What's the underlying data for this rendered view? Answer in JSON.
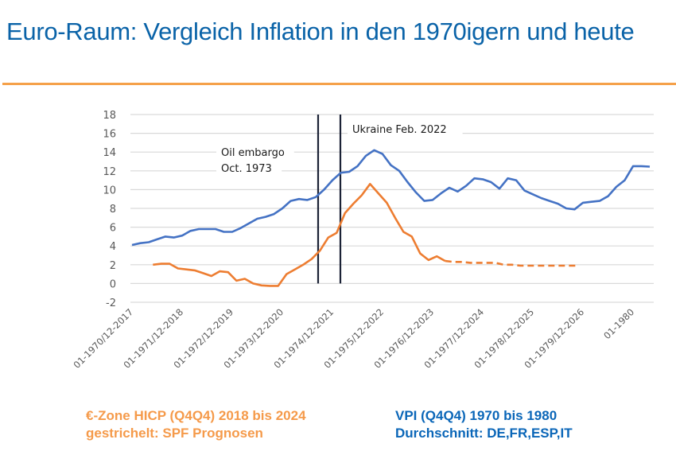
{
  "page": {
    "title": "Euro-Raum: Vergleich Inflation in den 1970igern und heute",
    "accent_color": "#f5a14a",
    "title_color": "#0a63a8"
  },
  "legend": {
    "left": {
      "line1": "€-Zone HICP (Q4Q4) 2018 bis 2024",
      "line2": "gestrichelt: SPF Prognosen",
      "color": "#f59a4a"
    },
    "right": {
      "line1": "VPI (Q4Q4) 1970 bis 1980",
      "line2": "Durchschnitt: DE,FR,ESP,IT",
      "color": "#0a66b8"
    }
  },
  "chart_data": {
    "type": "line",
    "title": "Euro-Raum: Vergleich Inflation in den 1970igern und heute",
    "xlabel": "",
    "ylabel": "",
    "ylim": [
      -2,
      18
    ],
    "yticks": [
      18,
      16,
      14,
      12,
      10,
      8,
      6,
      4,
      2,
      0,
      -2
    ],
    "grid": true,
    "x_unit": "month index (0 = 01-1970 / 01-2017), sampled every 2 months",
    "x_range": [
      0,
      132
    ],
    "xtick_positions": [
      0,
      12,
      24,
      36,
      48,
      60,
      72,
      84,
      96,
      108,
      120
    ],
    "xtick_labels": [
      "01-1970/12-2017",
      "01-1971/12-2018",
      "01-1972/12-2019",
      "01-1973/12-2020",
      "01-1974/12-2021",
      "01-1975/12-2022",
      "01-1976/12-2023",
      "01-1977/12-2024",
      "01-1978/12-2025",
      "01-1979/12-2026",
      "01-1980"
    ],
    "series": [
      {
        "name": "VPI (Q4Q4) 1970 bis 1980, Durchschnitt DE,FR,ESP,IT",
        "color": "#4472c4",
        "style": "solid",
        "x_start": 0,
        "x_step": 2,
        "values": [
          4.1,
          4.3,
          4.4,
          4.7,
          5.0,
          4.9,
          5.1,
          5.6,
          5.8,
          5.8,
          5.8,
          5.5,
          5.5,
          5.9,
          6.4,
          6.9,
          7.1,
          7.4,
          8.0,
          8.8,
          9.0,
          8.9,
          9.2,
          10.0,
          11.0,
          11.8,
          11.9,
          12.5,
          13.6,
          14.2,
          13.8,
          12.6,
          12.0,
          10.8,
          9.7,
          8.8,
          8.9,
          9.6,
          10.2,
          9.8,
          10.4,
          11.2,
          11.1,
          10.8,
          10.1,
          11.2,
          11.0,
          9.9,
          9.5,
          9.1,
          8.8,
          8.5,
          8.0,
          7.9,
          8.6,
          8.7,
          8.8,
          9.3,
          10.3,
          11.0,
          12.5,
          12.5,
          12.45
        ]
      },
      {
        "name": "€-Zone HICP (Q4Q4) 2018 bis 2024",
        "color": "#ed7d31",
        "style": "solid",
        "x_start": 5,
        "x_step": 2,
        "values": [
          2.0,
          2.1,
          2.1,
          1.6,
          1.5,
          1.4,
          1.1,
          0.8,
          1.3,
          1.2,
          0.3,
          0.5,
          0.0,
          -0.2,
          -0.25,
          -0.25,
          1.0,
          1.5,
          2.0,
          2.6,
          3.5,
          4.9,
          5.4,
          7.5,
          8.5,
          9.4,
          10.6,
          9.6,
          8.6,
          7.0,
          5.5,
          5.0,
          3.2,
          2.5,
          2.9,
          2.4
        ]
      },
      {
        "name": "gestrichelt: SPF Prognosen",
        "color": "#ed7d31",
        "style": "dashed",
        "x_start": 75,
        "x_step": 2,
        "values": [
          2.4,
          2.3,
          2.3,
          2.2,
          2.2,
          2.2,
          2.2,
          2.0,
          2.0,
          1.9,
          1.9,
          1.9,
          1.9,
          1.9,
          1.9,
          1.9,
          1.9
        ]
      }
    ],
    "vertical_markers": [
      {
        "x": 45,
        "label": "Oil embargo Oct. 1973",
        "label_lines": [
          "Oil embargo",
          "Oct. 1973"
        ],
        "side": "left"
      },
      {
        "x": 50,
        "label": "Ukraine Feb. 2022",
        "label_lines": [
          "Ukraine Feb. 2022"
        ],
        "side": "right"
      }
    ]
  }
}
